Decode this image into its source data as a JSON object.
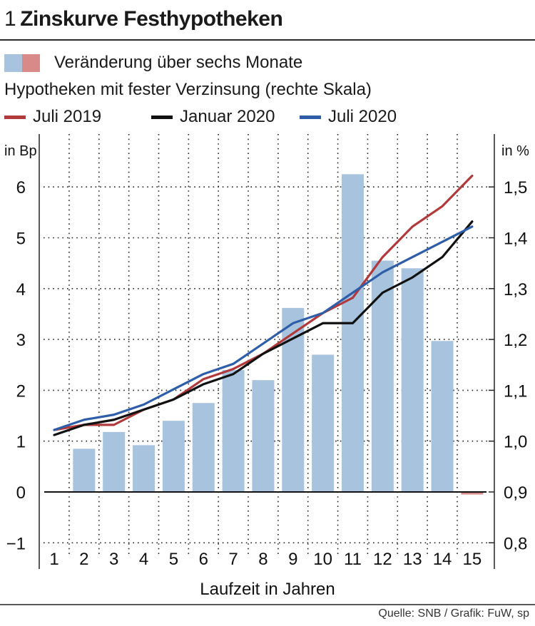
{
  "header": {
    "number": "1",
    "title": "Zinskurve Festhypotheken"
  },
  "legend": {
    "bars_label": "Veränderung über sechs Monate",
    "bar_colors": [
      "#a7c3de",
      "#d88a89"
    ],
    "subtitle": "Hypotheken mit fester Verzinsung (rechte Skala)",
    "series": [
      {
        "label": "Juli 2019",
        "color": "#b0393b"
      },
      {
        "label": "Januar 2020",
        "color": "#111111"
      },
      {
        "label": "Juli 2020",
        "color": "#2f5ea8"
      }
    ]
  },
  "footer": {
    "source": "Quelle: SNB / Grafik: FuW, sp"
  },
  "chart_data": {
    "type": "bar+line",
    "title": "Zinskurve Festhypotheken",
    "xlabel": "Laufzeit in Jahren",
    "categories": [
      "1",
      "2",
      "3",
      "4",
      "5",
      "6",
      "7",
      "8",
      "9",
      "10",
      "11",
      "12",
      "13",
      "14",
      "15"
    ],
    "left_axis": {
      "label": "in Bp",
      "ylim": [
        -1,
        6.5
      ],
      "ticks": [
        "6",
        "5",
        "4",
        "3",
        "2",
        "1",
        "0",
        "−1"
      ],
      "tick_values": [
        6,
        5,
        4,
        3,
        2,
        1,
        0,
        -1
      ]
    },
    "right_axis": {
      "label": "in %",
      "ylim": [
        0.8,
        1.55
      ],
      "ticks": [
        "1,5",
        "1,4",
        "1,3",
        "1,2",
        "1,1",
        "1,0",
        "0,9",
        "0,8"
      ],
      "tick_values": [
        1.5,
        1.4,
        1.3,
        1.2,
        1.1,
        1.0,
        0.9,
        0.8
      ]
    },
    "bars": {
      "name": "Veränderung über sechs Monate",
      "values": [
        0,
        0.85,
        1.18,
        0.92,
        1.4,
        1.75,
        2.4,
        2.2,
        3.62,
        2.7,
        6.25,
        4.55,
        4.4,
        2.97,
        -0.05
      ],
      "positive_color": "#a7c3de",
      "negative_color": "#d88a89"
    },
    "series": [
      {
        "name": "Juli 2019",
        "color": "#b0393b",
        "values": [
          1.022,
          1.032,
          1.032,
          1.062,
          1.082,
          1.122,
          1.142,
          1.172,
          1.212,
          1.252,
          1.282,
          1.362,
          1.422,
          1.462,
          1.522
        ]
      },
      {
        "name": "Januar 2020",
        "color": "#111111",
        "values": [
          1.012,
          1.032,
          1.042,
          1.062,
          1.082,
          1.112,
          1.132,
          1.172,
          1.202,
          1.232,
          1.232,
          1.292,
          1.322,
          1.362,
          1.432
        ]
      },
      {
        "name": "Juli 2020",
        "color": "#2f5ea8",
        "values": [
          1.022,
          1.042,
          1.052,
          1.072,
          1.102,
          1.132,
          1.152,
          1.192,
          1.232,
          1.252,
          1.292,
          1.332,
          1.362,
          1.392,
          1.422
        ]
      }
    ],
    "grid": true
  }
}
